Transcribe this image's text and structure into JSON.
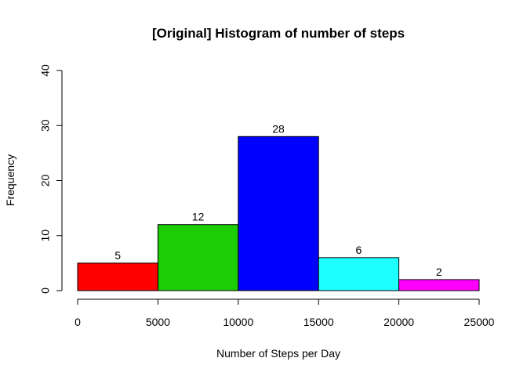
{
  "chart_data": {
    "type": "bar",
    "title": "[Original] Histogram of number of steps",
    "xlabel": "Number of Steps per Day",
    "ylabel": "Frequency",
    "bins": [
      {
        "from": 0,
        "to": 5000,
        "value": 5,
        "color": "#ff0000"
      },
      {
        "from": 5000,
        "to": 10000,
        "value": 12,
        "color": "#1ccc04"
      },
      {
        "from": 10000,
        "to": 15000,
        "value": 28,
        "color": "#0000ff"
      },
      {
        "from": 15000,
        "to": 20000,
        "value": 6,
        "color": "#1effff"
      },
      {
        "from": 20000,
        "to": 25000,
        "value": 2,
        "color": "#ff00ff"
      }
    ],
    "values": [
      5,
      12,
      28,
      6,
      2
    ],
    "xlim": [
      0,
      25000
    ],
    "ylim": [
      0,
      40
    ],
    "xticks": [
      "0",
      "5000",
      "10000",
      "15000",
      "20000",
      "25000"
    ],
    "yticks": [
      "0",
      "10",
      "20",
      "30",
      "40"
    ],
    "grid": false,
    "legend": "none"
  }
}
